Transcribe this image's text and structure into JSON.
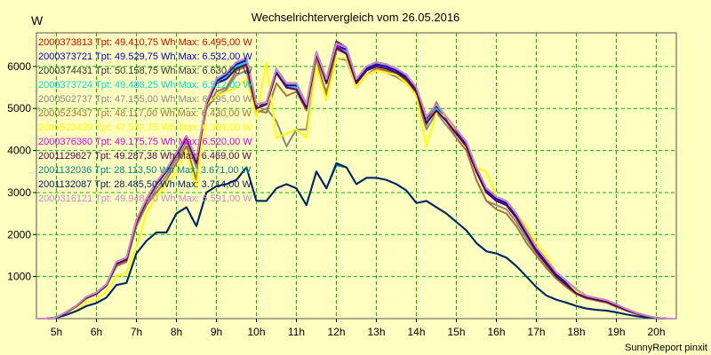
{
  "chart_data": {
    "type": "line",
    "title": "Wechselrichtervergleich vom 26.05.2016",
    "ylabel": "W",
    "xlabel": "",
    "credit": "SunnyReport pinxit",
    "x_tick_labels": [
      "5h",
      "6h",
      "7h",
      "8h",
      "9h",
      "10h",
      "11h",
      "12h",
      "13h",
      "14h",
      "15h",
      "16h",
      "17h",
      "18h",
      "19h",
      "20h"
    ],
    "x_tick_hours": [
      5,
      6,
      7,
      8,
      9,
      10,
      11,
      12,
      13,
      14,
      15,
      16,
      17,
      18,
      19,
      20
    ],
    "xlim": [
      4.5,
      20.5
    ],
    "y_ticks": [
      1000,
      2000,
      3000,
      4000,
      5000,
      6000
    ],
    "y_tick_labels": [
      "1000",
      "2000",
      "3000",
      "4000",
      "5000",
      "6000"
    ],
    "ylim": [
      0,
      6800
    ],
    "grid": true,
    "legend_position": "top-left",
    "hours": [
      4.5,
      4.75,
      5,
      5.25,
      5.5,
      5.75,
      6,
      6.25,
      6.5,
      6.75,
      7,
      7.25,
      7.5,
      7.75,
      8,
      8.25,
      8.5,
      8.75,
      9,
      9.25,
      9.5,
      9.75,
      10,
      10.25,
      10.5,
      10.75,
      11,
      11.25,
      11.5,
      11.75,
      12,
      12.25,
      12.5,
      12.75,
      13,
      13.25,
      13.5,
      13.75,
      14,
      14.25,
      14.5,
      14.75,
      15,
      15.25,
      15.5,
      15.75,
      16,
      16.25,
      16.5,
      16.75,
      17,
      17.25,
      17.5,
      17.75,
      18,
      18.25,
      18.5,
      18.75,
      19,
      19.25,
      19.5,
      19.75,
      20,
      20.25,
      20.5
    ],
    "series": [
      {
        "legend": "2000373813 Tpt: 49.410,75 Wh Max: 6.495,00 W",
        "color": "#dd0000",
        "values": [
          0,
          0,
          30,
          150,
          300,
          500,
          600,
          800,
          1300,
          1400,
          2300,
          2800,
          3200,
          3500,
          3900,
          4300,
          3700,
          5100,
          5600,
          5750,
          6000,
          6100,
          5000,
          5100,
          5900,
          5500,
          5500,
          5000,
          6300,
          5600,
          6450,
          6350,
          5600,
          5900,
          6000,
          5950,
          5850,
          5700,
          5400,
          4700,
          5000,
          4700,
          4400,
          4100,
          3500,
          3000,
          2800,
          2700,
          2400,
          2000,
          1600,
          1300,
          1000,
          800,
          600,
          500,
          450,
          400,
          300,
          200,
          120,
          60,
          20,
          0,
          0
        ]
      },
      {
        "legend": "2000373721 Tpt: 49.529,75 Wh Max: 6.532,00 W",
        "color": "#0000cc",
        "values": [
          0,
          0,
          30,
          150,
          300,
          500,
          600,
          800,
          1300,
          1400,
          2300,
          2800,
          3200,
          3500,
          3900,
          4300,
          3800,
          5100,
          5650,
          5800,
          6050,
          6150,
          5050,
          5100,
          5900,
          5550,
          5550,
          5050,
          6300,
          5650,
          6500,
          6400,
          5650,
          5950,
          6050,
          6000,
          5900,
          5750,
          5450,
          4750,
          5050,
          4750,
          4450,
          4150,
          3550,
          3050,
          2850,
          2750,
          2450,
          2050,
          1650,
          1350,
          1050,
          850,
          650,
          520,
          470,
          420,
          320,
          220,
          130,
          70,
          20,
          0,
          0
        ]
      },
      {
        "legend": "2000374431 Tpt: 50.158,75 Wh Max: 6.630,00 W",
        "color": "#333333",
        "values": [
          0,
          0,
          30,
          160,
          310,
          520,
          620,
          820,
          1350,
          1450,
          2350,
          2850,
          3250,
          3550,
          3950,
          4350,
          3800,
          5150,
          5700,
          5850,
          6100,
          6200,
          5100,
          5150,
          5950,
          5600,
          5600,
          5100,
          6350,
          5700,
          6600,
          6450,
          5700,
          6000,
          6100,
          6050,
          5950,
          5800,
          5500,
          4800,
          5100,
          4800,
          4500,
          4200,
          3600,
          3100,
          2900,
          2800,
          2500,
          2100,
          1700,
          1400,
          1100,
          900,
          700,
          540,
          490,
          440,
          340,
          230,
          140,
          70,
          20,
          0,
          0
        ]
      },
      {
        "legend": "2000373724 Tpt: 49.486,25 Wh Max: 6.512,00 W",
        "color": "#00dddd",
        "values": [
          0,
          0,
          30,
          150,
          300,
          500,
          600,
          800,
          1300,
          1400,
          2300,
          2800,
          3200,
          3500,
          3900,
          4300,
          3750,
          5100,
          5600,
          5750,
          6000,
          6100,
          5000,
          5100,
          5900,
          5500,
          5500,
          5000,
          6300,
          5600,
          6450,
          6350,
          5600,
          5900,
          6000,
          5950,
          5850,
          5700,
          5400,
          4700,
          5000,
          4700,
          4400,
          4100,
          3500,
          3000,
          2800,
          2700,
          2400,
          2000,
          1600,
          1300,
          1000,
          800,
          600,
          500,
          450,
          400,
          300,
          200,
          120,
          60,
          20,
          0,
          0
        ]
      },
      {
        "legend": "2000502737 Tpt: 47.155,00 Wh Max: 6.195,00 W",
        "color": "#888888",
        "values": [
          0,
          0,
          30,
          140,
          290,
          480,
          580,
          780,
          1250,
          1350,
          2200,
          2700,
          3100,
          3400,
          3800,
          4200,
          3600,
          5000,
          5300,
          5450,
          5800,
          5900,
          4900,
          5000,
          4700,
          4100,
          4500,
          4500,
          6000,
          5400,
          6200,
          6150,
          5500,
          5800,
          5900,
          5850,
          5750,
          5600,
          5300,
          4500,
          4900,
          4600,
          4300,
          4000,
          3300,
          2800,
          2700,
          2600,
          2300,
          1900,
          1550,
          1250,
          950,
          750,
          580,
          480,
          430,
          380,
          280,
          190,
          110,
          55,
          20,
          0,
          0
        ]
      },
      {
        "legend": "2000523437 Tpt: 48.117,00 Wh Max: 6.430,00 W",
        "color": "#aa7733",
        "values": [
          0,
          0,
          30,
          140,
          290,
          480,
          580,
          780,
          1250,
          1350,
          2200,
          2700,
          3000,
          3300,
          3700,
          4100,
          3300,
          5000,
          5400,
          5500,
          5900,
          6000,
          4950,
          4900,
          5600,
          5300,
          5400,
          4950,
          6200,
          5300,
          6400,
          6300,
          5500,
          5800,
          5950,
          5900,
          5800,
          5650,
          5350,
          4600,
          5150,
          4700,
          4300,
          4000,
          3300,
          2800,
          2600,
          2500,
          2200,
          1800,
          1500,
          1200,
          950,
          750,
          580,
          480,
          430,
          380,
          280,
          190,
          110,
          55,
          20,
          0,
          0
        ]
      },
      {
        "legend": "2000523439 Tpt: 47.537,75 Wh Max: 6.363,00 W",
        "color": "#ffff00",
        "values": [
          0,
          0,
          20,
          100,
          200,
          400,
          450,
          650,
          1000,
          1100,
          1700,
          2500,
          2900,
          3200,
          3500,
          4000,
          3100,
          5100,
          5300,
          5400,
          5500,
          5700,
          4800,
          6100,
          4300,
          4400,
          4500,
          4300,
          6000,
          5200,
          6200,
          6200,
          5500,
          5800,
          5900,
          5850,
          5800,
          5600,
          5300,
          4100,
          4900,
          4800,
          4400,
          4100,
          3600,
          3500,
          2900,
          2800,
          2500,
          2200,
          1800,
          1500,
          1100,
          900,
          650,
          520,
          450,
          400,
          300,
          200,
          110,
          55,
          20,
          0,
          0
        ]
      },
      {
        "legend": "2000376360 Tpt: 49.175,75 Wh Max: 6.520,00 W",
        "color": "#dd00dd",
        "values": [
          0,
          0,
          30,
          150,
          300,
          500,
          600,
          800,
          1300,
          1400,
          2300,
          2800,
          3200,
          3500,
          3900,
          4300,
          3700,
          5100,
          5600,
          5700,
          5950,
          6050,
          5000,
          5100,
          5850,
          5500,
          5450,
          5000,
          6300,
          5600,
          6500,
          6300,
          5600,
          5900,
          6000,
          5950,
          5850,
          5700,
          5400,
          4650,
          4950,
          4700,
          4400,
          4100,
          3500,
          3000,
          2800,
          2700,
          2400,
          2000,
          1600,
          1300,
          1000,
          800,
          600,
          500,
          450,
          400,
          300,
          200,
          120,
          60,
          20,
          0,
          0
        ]
      },
      {
        "legend": "2001129627 Tpt: 49.287,38 Wh Max: 6.469,00 W",
        "color": "#550055",
        "values": [
          0,
          0,
          30,
          150,
          300,
          500,
          600,
          800,
          1300,
          1400,
          2300,
          2800,
          3200,
          3500,
          3900,
          4300,
          3700,
          5100,
          5600,
          5700,
          5950,
          6050,
          5000,
          5100,
          5850,
          5500,
          5450,
          5000,
          6300,
          5600,
          6450,
          6300,
          5600,
          5900,
          6000,
          5950,
          5850,
          5700,
          5400,
          4650,
          4950,
          4700,
          4400,
          4100,
          3500,
          3000,
          2800,
          2700,
          2400,
          2000,
          1600,
          1300,
          1000,
          800,
          600,
          500,
          450,
          400,
          300,
          200,
          120,
          60,
          20,
          0,
          0
        ]
      },
      {
        "legend": "2001132036 Tpt: 28.113,50 Wh Max: 3.671,00 W",
        "color": "#008888",
        "values": [
          0,
          0,
          20,
          90,
          180,
          300,
          370,
          500,
          800,
          850,
          1550,
          1850,
          2050,
          2050,
          2500,
          2650,
          2200,
          3000,
          3150,
          3200,
          3300,
          3600,
          2800,
          2800,
          3100,
          3200,
          3100,
          2700,
          3500,
          3100,
          3650,
          3600,
          3200,
          3350,
          3350,
          3300,
          3200,
          3050,
          2750,
          2800,
          2650,
          2500,
          2300,
          2100,
          1800,
          1600,
          1550,
          1450,
          1250,
          1000,
          750,
          550,
          450,
          380,
          300,
          240,
          210,
          190,
          150,
          100,
          60,
          30,
          10,
          0,
          0
        ]
      },
      {
        "legend": "2001132087 Tpt: 28.485,50 Wh Max: 3.714,00 W",
        "color": "#002266",
        "values": [
          0,
          0,
          20,
          90,
          180,
          300,
          370,
          500,
          800,
          850,
          1550,
          1850,
          2050,
          2050,
          2500,
          2650,
          2200,
          3000,
          3150,
          3200,
          3300,
          3600,
          2800,
          2800,
          3100,
          3200,
          3100,
          2700,
          3500,
          3100,
          3700,
          3600,
          3200,
          3350,
          3350,
          3300,
          3200,
          3050,
          2750,
          2800,
          2650,
          2500,
          2300,
          2100,
          1800,
          1600,
          1550,
          1450,
          1250,
          1000,
          750,
          550,
          450,
          380,
          300,
          240,
          210,
          190,
          150,
          100,
          60,
          30,
          10,
          0,
          0
        ]
      },
      {
        "legend": "2000316121 Tpt: 49.948,00 Wh Max: 6.591,00 W",
        "color": "#cc88cc",
        "values": [
          0,
          0,
          30,
          160,
          310,
          520,
          620,
          820,
          1350,
          1450,
          2350,
          2850,
          3250,
          3550,
          3950,
          4350,
          3800,
          5150,
          5700,
          5850,
          6100,
          6200,
          5100,
          5150,
          5950,
          5600,
          5600,
          5100,
          6350,
          5700,
          6550,
          6450,
          5700,
          6000,
          6100,
          6050,
          5950,
          5800,
          5500,
          4800,
          5100,
          4800,
          4500,
          4200,
          3600,
          3100,
          2900,
          2800,
          2500,
          2100,
          1700,
          1400,
          1100,
          900,
          700,
          540,
          490,
          440,
          340,
          230,
          140,
          70,
          20,
          0,
          0
        ]
      }
    ]
  }
}
